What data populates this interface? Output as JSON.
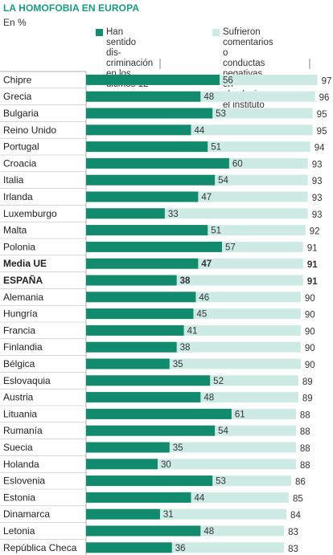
{
  "title": "LA HOMOFOBIA EN EUROPA",
  "subtitle": "En %",
  "colors": {
    "accent": "#179c7d",
    "series1": "#118a6e",
    "series2": "#cdeae4",
    "title": "#179c7d"
  },
  "chart_data": {
    "type": "bar",
    "orientation": "horizontal",
    "layout": "overlapping",
    "title": "LA HOMOFOBIA EN EUROPA",
    "subtitle": "En %",
    "grid": false,
    "legend_position": "top",
    "bold_categories": [
      "Media UE",
      "ESPAÑA"
    ],
    "xlim": [
      0,
      100
    ],
    "categories": [
      "Chipre",
      "Grecia",
      "Bulgaria",
      "Reino Unido",
      "Portugal",
      "Croacia",
      "Italia",
      "Irlanda",
      "Luxemburgo",
      "Malta",
      "Polonia",
      "Media UE",
      "ESPAÑA",
      "Alemania",
      "Hungría",
      "Francia",
      "Finlandia",
      "Bélgica",
      "Eslovaquia",
      "Austria",
      "Lituania",
      "Rumanía",
      "Suecia",
      "Holanda",
      "Eslovenia",
      "Estonia",
      "Dinamarca",
      "Letonia",
      "República Checa"
    ],
    "series": [
      {
        "name": "Han sentido dis-\ncriminación en los\núltimos 12 meses",
        "values": [
          56,
          48,
          53,
          44,
          51,
          60,
          54,
          47,
          33,
          51,
          57,
          47,
          38,
          46,
          45,
          41,
          38,
          35,
          52,
          48,
          61,
          54,
          35,
          30,
          53,
          44,
          31,
          48,
          36
        ]
      },
      {
        "name": "Sufrieron comentarios o\nconductas negativas en\nel colegio o el instituto",
        "values": [
          97,
          96,
          95,
          95,
          94,
          93,
          93,
          93,
          93,
          92,
          91,
          91,
          91,
          90,
          90,
          90,
          90,
          90,
          89,
          89,
          88,
          88,
          88,
          88,
          86,
          85,
          84,
          83,
          83
        ]
      }
    ]
  }
}
